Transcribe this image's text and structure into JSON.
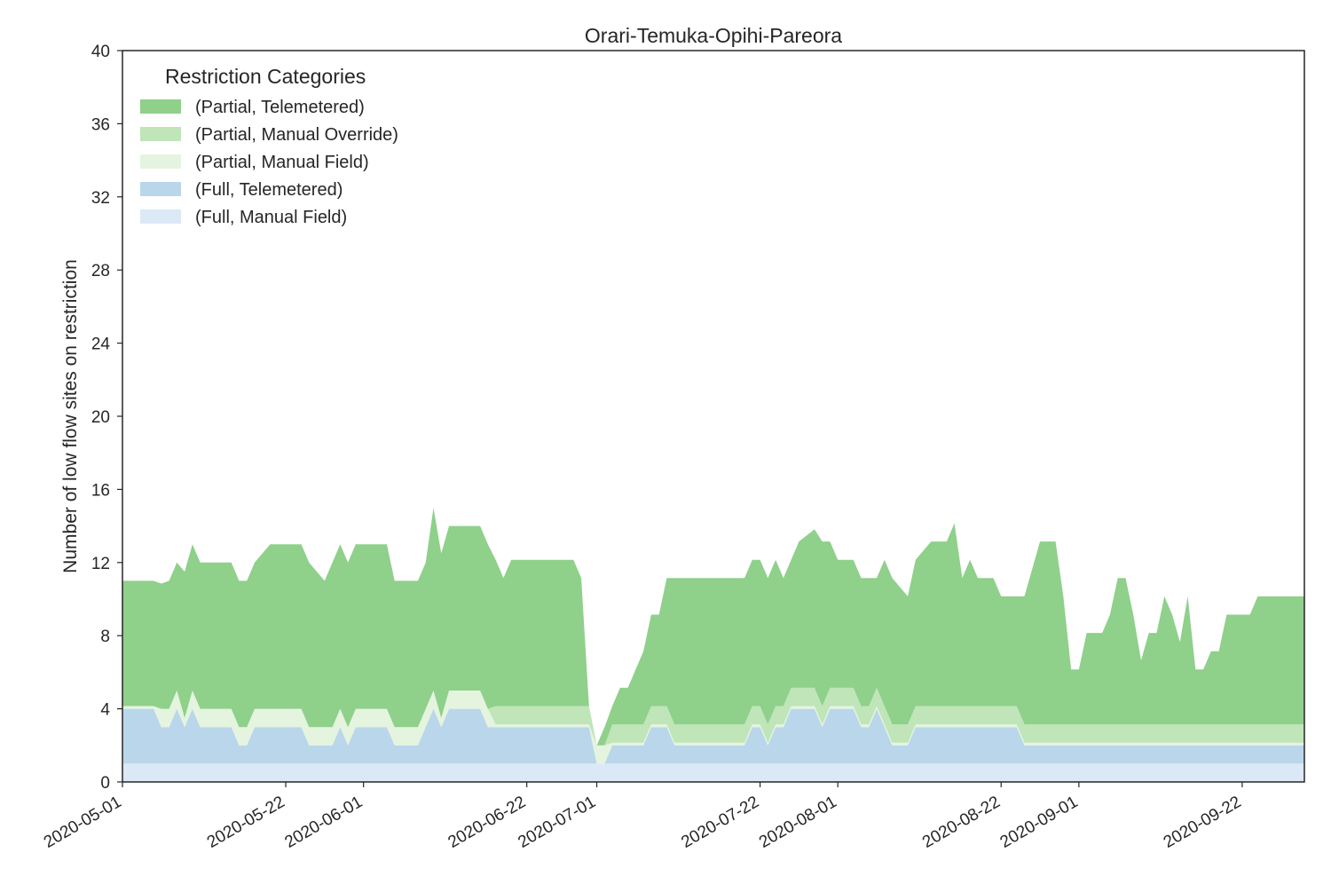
{
  "chart_data": {
    "type": "area",
    "stacked": true,
    "title": "Orari-Temuka-Opihi-Pareora",
    "xlabel": "",
    "ylabel": "Number of low flow sites on restriction",
    "ylim": [
      0,
      40
    ],
    "y_ticks": [
      0,
      4,
      8,
      12,
      16,
      20,
      24,
      28,
      32,
      36,
      40
    ],
    "xlim": [
      "2020-05-01",
      "2020-09-30"
    ],
    "x_ticks": [
      "2020-05-01",
      "2020-05-22",
      "2020-06-01",
      "2020-06-22",
      "2020-07-01",
      "2020-07-22",
      "2020-08-01",
      "2020-08-22",
      "2020-09-01",
      "2020-09-22"
    ],
    "grid": false,
    "legend": {
      "title": "Restriction Categories",
      "placement": "top-left"
    },
    "series": [
      {
        "name": "(Full, Manual Field)",
        "color": "#dbe9f6",
        "points": [
          [
            "2020-05-01",
            1
          ],
          [
            "2020-09-30",
            1
          ]
        ]
      },
      {
        "name": "(Full, Telemetered)",
        "color": "#bad6eb",
        "points": [
          [
            "2020-05-01",
            3
          ],
          [
            "2020-05-05",
            3
          ],
          [
            "2020-05-06",
            2
          ],
          [
            "2020-05-07",
            2
          ],
          [
            "2020-05-08",
            3
          ],
          [
            "2020-05-09",
            2
          ],
          [
            "2020-05-10",
            3
          ],
          [
            "2020-05-11",
            2
          ],
          [
            "2020-05-15",
            2
          ],
          [
            "2020-05-16",
            1
          ],
          [
            "2020-05-17",
            1
          ],
          [
            "2020-05-18",
            2
          ],
          [
            "2020-05-24",
            2
          ],
          [
            "2020-05-25",
            1
          ],
          [
            "2020-05-28",
            1
          ],
          [
            "2020-05-29",
            2
          ],
          [
            "2020-05-30",
            1
          ],
          [
            "2020-05-31",
            2
          ],
          [
            "2020-06-04",
            2
          ],
          [
            "2020-06-05",
            1
          ],
          [
            "2020-06-08",
            1
          ],
          [
            "2020-06-10",
            3
          ],
          [
            "2020-06-11",
            2
          ],
          [
            "2020-06-12",
            3
          ],
          [
            "2020-06-16",
            3
          ],
          [
            "2020-06-17",
            2
          ],
          [
            "2020-06-30",
            2
          ],
          [
            "2020-07-01",
            0
          ],
          [
            "2020-07-02",
            0
          ],
          [
            "2020-07-03",
            1
          ],
          [
            "2020-07-07",
            1
          ],
          [
            "2020-07-08",
            2
          ],
          [
            "2020-07-10",
            2
          ],
          [
            "2020-07-11",
            1
          ],
          [
            "2020-07-20",
            1
          ],
          [
            "2020-07-21",
            2
          ],
          [
            "2020-07-22",
            2
          ],
          [
            "2020-07-23",
            1
          ],
          [
            "2020-07-24",
            2
          ],
          [
            "2020-07-25",
            2
          ],
          [
            "2020-07-26",
            3
          ],
          [
            "2020-07-29",
            3
          ],
          [
            "2020-07-30",
            2
          ],
          [
            "2020-07-31",
            3
          ],
          [
            "2020-08-03",
            3
          ],
          [
            "2020-08-04",
            2
          ],
          [
            "2020-08-05",
            2
          ],
          [
            "2020-08-06",
            3
          ],
          [
            "2020-08-07",
            2
          ],
          [
            "2020-08-08",
            1
          ],
          [
            "2020-08-10",
            1
          ],
          [
            "2020-08-11",
            2
          ],
          [
            "2020-08-24",
            2
          ],
          [
            "2020-08-25",
            1
          ],
          [
            "2020-09-30",
            1
          ]
        ]
      },
      {
        "name": "(Partial, Manual Field)",
        "color": "#e4f4df",
        "points": [
          [
            "2020-05-01",
            0.15
          ],
          [
            "2020-05-05",
            0.15
          ],
          [
            "2020-05-06",
            1
          ],
          [
            "2020-05-08",
            1
          ],
          [
            "2020-05-09",
            0.5
          ],
          [
            "2020-05-10",
            1
          ],
          [
            "2020-05-16",
            1
          ],
          [
            "2020-05-17",
            1
          ],
          [
            "2020-05-18",
            1
          ],
          [
            "2020-05-24",
            1
          ],
          [
            "2020-05-25",
            1
          ],
          [
            "2020-05-31",
            1
          ],
          [
            "2020-06-01",
            1
          ],
          [
            "2020-06-04",
            1
          ],
          [
            "2020-06-05",
            1
          ],
          [
            "2020-06-08",
            1
          ],
          [
            "2020-06-10",
            1
          ],
          [
            "2020-06-11",
            0.5
          ],
          [
            "2020-06-12",
            1
          ],
          [
            "2020-06-17",
            1
          ],
          [
            "2020-06-18",
            0.15
          ],
          [
            "2020-06-30",
            0.15
          ],
          [
            "2020-07-01",
            1
          ],
          [
            "2020-07-02",
            1
          ],
          [
            "2020-07-03",
            0.15
          ],
          [
            "2020-07-08",
            0.15
          ],
          [
            "2020-07-11",
            0.15
          ],
          [
            "2020-09-30",
            0.15
          ]
        ]
      },
      {
        "name": "(Partial, Manual Override)",
        "color": "#bfe5b8",
        "points": [
          [
            "2020-05-01",
            0
          ],
          [
            "2020-06-17",
            0
          ],
          [
            "2020-06-18",
            1
          ],
          [
            "2020-06-30",
            1
          ],
          [
            "2020-07-01",
            0
          ],
          [
            "2020-07-02",
            0
          ],
          [
            "2020-07-03",
            1
          ],
          [
            "2020-07-07",
            1
          ],
          [
            "2020-07-08",
            1
          ],
          [
            "2020-07-11",
            1
          ],
          [
            "2020-07-20",
            1
          ],
          [
            "2020-07-22",
            1
          ],
          [
            "2020-07-23",
            1
          ],
          [
            "2020-08-08",
            1
          ],
          [
            "2020-08-24",
            1
          ],
          [
            "2020-09-30",
            1
          ]
        ]
      },
      {
        "name": "(Partial, Telemetered)",
        "color": "#8fd08b",
        "points": [
          [
            "2020-05-01",
            6.85
          ],
          [
            "2020-05-06",
            6.85
          ],
          [
            "2020-05-07",
            7
          ],
          [
            "2020-05-08",
            7
          ],
          [
            "2020-05-09",
            8
          ],
          [
            "2020-05-10",
            8
          ],
          [
            "2020-05-11",
            8
          ],
          [
            "2020-05-15",
            8
          ],
          [
            "2020-05-16",
            8
          ],
          [
            "2020-05-17",
            8
          ],
          [
            "2020-05-18",
            8
          ],
          [
            "2020-05-20",
            9
          ],
          [
            "2020-05-23",
            9
          ],
          [
            "2020-05-24",
            9
          ],
          [
            "2020-05-25",
            9
          ],
          [
            "2020-05-27",
            8
          ],
          [
            "2020-05-28",
            9
          ],
          [
            "2020-05-29",
            9
          ],
          [
            "2020-05-30",
            9
          ],
          [
            "2020-05-31",
            9
          ],
          [
            "2020-06-04",
            9
          ],
          [
            "2020-06-05",
            8
          ],
          [
            "2020-06-08",
            8
          ],
          [
            "2020-06-09",
            8
          ],
          [
            "2020-06-10",
            10
          ],
          [
            "2020-06-11",
            9
          ],
          [
            "2020-06-12",
            9
          ],
          [
            "2020-06-17",
            9
          ],
          [
            "2020-06-18",
            8
          ],
          [
            "2020-06-19",
            7
          ],
          [
            "2020-06-20",
            8
          ],
          [
            "2020-06-28",
            8
          ],
          [
            "2020-06-29",
            7
          ],
          [
            "2020-06-30",
            0
          ],
          [
            "2020-07-01",
            0
          ],
          [
            "2020-07-02",
            1
          ],
          [
            "2020-07-03",
            1
          ],
          [
            "2020-07-04",
            2
          ],
          [
            "2020-07-05",
            2
          ],
          [
            "2020-07-07",
            4
          ],
          [
            "2020-07-08",
            5
          ],
          [
            "2020-07-09",
            5
          ],
          [
            "2020-07-10",
            7
          ],
          [
            "2020-07-11",
            8
          ],
          [
            "2020-07-21",
            8
          ],
          [
            "2020-07-22",
            8
          ],
          [
            "2020-07-23",
            8
          ],
          [
            "2020-07-24",
            8
          ],
          [
            "2020-07-25",
            7
          ],
          [
            "2020-07-26",
            7
          ],
          [
            "2020-07-27",
            8
          ],
          [
            "2020-07-30",
            9
          ],
          [
            "2020-07-31",
            8
          ],
          [
            "2020-08-01",
            7
          ],
          [
            "2020-08-04",
            7
          ],
          [
            "2020-08-05",
            7
          ],
          [
            "2020-08-06",
            6
          ],
          [
            "2020-08-07",
            8
          ],
          [
            "2020-08-08",
            8
          ],
          [
            "2020-08-10",
            7
          ],
          [
            "2020-08-11",
            8
          ],
          [
            "2020-08-13",
            9
          ],
          [
            "2020-08-15",
            9
          ],
          [
            "2020-08-16",
            10
          ],
          [
            "2020-08-17",
            7
          ],
          [
            "2020-08-18",
            8
          ],
          [
            "2020-08-19",
            7
          ],
          [
            "2020-08-21",
            7
          ],
          [
            "2020-08-22",
            6
          ],
          [
            "2020-08-24",
            6
          ],
          [
            "2020-08-25",
            7
          ],
          [
            "2020-08-27",
            10
          ],
          [
            "2020-08-29",
            10
          ],
          [
            "2020-08-30",
            7
          ],
          [
            "2020-08-31",
            3
          ],
          [
            "2020-09-01",
            3
          ],
          [
            "2020-09-02",
            5
          ],
          [
            "2020-09-04",
            5
          ],
          [
            "2020-09-05",
            6
          ],
          [
            "2020-09-06",
            8
          ],
          [
            "2020-09-07",
            8
          ],
          [
            "2020-09-08",
            6
          ],
          [
            "2020-09-09",
            3.5
          ],
          [
            "2020-09-10",
            5
          ],
          [
            "2020-09-11",
            5
          ],
          [
            "2020-09-12",
            7
          ],
          [
            "2020-09-13",
            6
          ],
          [
            "2020-09-14",
            4.5
          ],
          [
            "2020-09-15",
            7
          ],
          [
            "2020-09-16",
            3
          ],
          [
            "2020-09-17",
            3
          ],
          [
            "2020-09-18",
            4
          ],
          [
            "2020-09-19",
            4
          ],
          [
            "2020-09-20",
            6
          ],
          [
            "2020-09-22",
            6
          ],
          [
            "2020-09-23",
            6
          ],
          [
            "2020-09-24",
            7
          ],
          [
            "2020-09-30",
            7
          ]
        ]
      }
    ]
  }
}
